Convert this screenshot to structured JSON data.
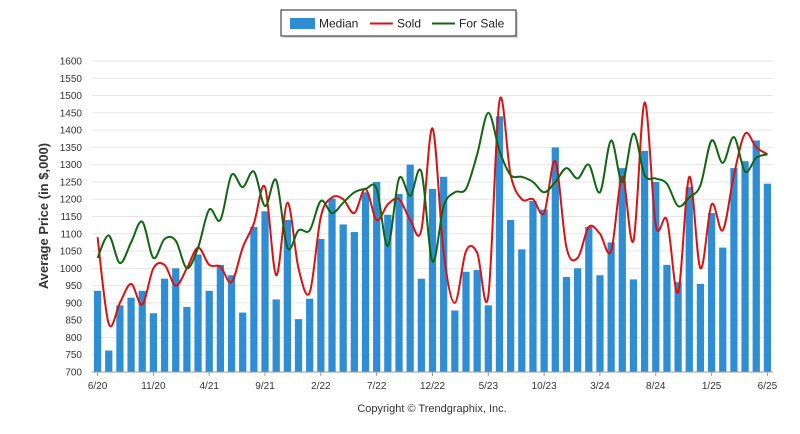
{
  "chart_data": {
    "type": "bar",
    "ylabel": "Average Price (in $,000)",
    "ylim": [
      700,
      1600
    ],
    "yticks": [
      700,
      750,
      800,
      850,
      900,
      950,
      1000,
      1050,
      1100,
      1150,
      1200,
      1250,
      1300,
      1350,
      1400,
      1450,
      1500,
      1550,
      1600
    ],
    "grid": true,
    "legend": "top-center",
    "x_tick_labels": [
      {
        "label": "6/20",
        "index": 0
      },
      {
        "label": "11/20",
        "index": 5
      },
      {
        "label": "4/21",
        "index": 10
      },
      {
        "label": "9/21",
        "index": 15
      },
      {
        "label": "2/22",
        "index": 20
      },
      {
        "label": "7/22",
        "index": 25
      },
      {
        "label": "12/22",
        "index": 30
      },
      {
        "label": "5/23",
        "index": 35
      },
      {
        "label": "10/23",
        "index": 40
      },
      {
        "label": "3/24",
        "index": 45
      },
      {
        "label": "8/24",
        "index": 50
      },
      {
        "label": "1/25",
        "index": 55
      },
      {
        "label": "6/25",
        "index": 60
      }
    ],
    "series": [
      {
        "name": "Median",
        "kind": "bar",
        "color": "#2f8ed3",
        "values": [
          935,
          762,
          893,
          915,
          935,
          870,
          970,
          1000,
          888,
          1040,
          935,
          1010,
          980,
          872,
          1120,
          1165,
          910,
          1140,
          853,
          912,
          1085,
          1202,
          1127,
          1105,
          1220,
          1250,
          1155,
          1215,
          1300,
          970,
          1230,
          1265,
          878,
          990,
          995,
          893,
          1440,
          1140,
          1055,
          1195,
          1170,
          1350,
          975,
          1000,
          1120,
          980,
          1075,
          1290,
          968,
          1340,
          1250,
          1010,
          960,
          1235,
          955,
          1160,
          1060,
          1290,
          1310,
          1370,
          1245
        ]
      },
      {
        "name": "Sold",
        "kind": "line",
        "color": "#dd1111",
        "values": [
          1090,
          840,
          900,
          955,
          895,
          1000,
          1010,
          950,
          1000,
          1060,
          1010,
          1005,
          960,
          1060,
          1130,
          1235,
          980,
          1190,
          1000,
          930,
          1150,
          1205,
          1200,
          1160,
          1230,
          1140,
          1185,
          1200,
          1140,
          1110,
          1405,
          1045,
          900,
          1050,
          1045,
          920,
          1485,
          1270,
          1200,
          1200,
          1160,
          1310,
          1060,
          1030,
          1120,
          1100,
          1050,
          1265,
          1080,
          1480,
          1125,
          1140,
          930,
          1265,
          1000,
          1185,
          1110,
          1270,
          1390,
          1350,
          1330
        ]
      },
      {
        "name": "For Sale",
        "kind": "line",
        "color": "#116611",
        "values": [
          1030,
          1095,
          1015,
          1075,
          1135,
          1030,
          1085,
          1080,
          1000,
          1060,
          1170,
          1140,
          1270,
          1235,
          1280,
          1180,
          1255,
          1060,
          1110,
          1110,
          1195,
          1160,
          1190,
          1220,
          1230,
          1230,
          1065,
          1260,
          1210,
          1280,
          1020,
          1180,
          1220,
          1230,
          1330,
          1450,
          1340,
          1270,
          1265,
          1250,
          1220,
          1250,
          1290,
          1260,
          1300,
          1220,
          1370,
          1250,
          1390,
          1270,
          1260,
          1245,
          1180,
          1205,
          1240,
          1370,
          1305,
          1380,
          1280,
          1320,
          1330
        ]
      }
    ]
  },
  "footer": "Copyright © Trendgraphix, Inc."
}
